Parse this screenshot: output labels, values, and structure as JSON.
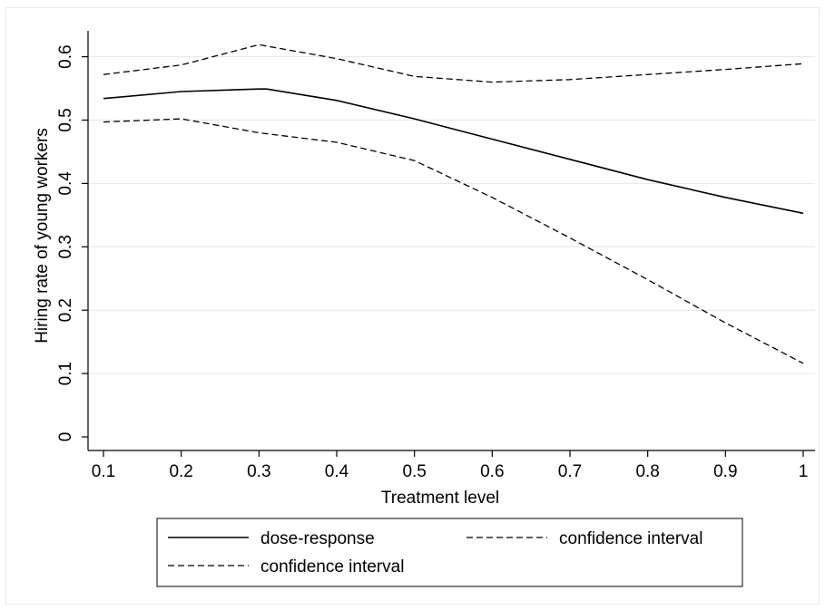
{
  "chart_data": {
    "type": "line",
    "xlabel": "Treatment level",
    "ylabel": "Hiring rate of young workers",
    "xlim": [
      0.1,
      1.0
    ],
    "ylim": [
      0,
      0.6
    ],
    "x_ticks": [
      "0.1",
      "0.2",
      "0.3",
      "0.4",
      "0.5",
      "0.6",
      "0.7",
      "0.8",
      "0.9",
      "1"
    ],
    "y_ticks": [
      "0",
      "0.1",
      "0.2",
      "0.3",
      "0.4",
      "0.5",
      "0.6"
    ],
    "x_tick_values": [
      0.1,
      0.2,
      0.3,
      0.4,
      0.5,
      0.6,
      0.7,
      0.8,
      0.9,
      1.0
    ],
    "y_tick_values": [
      0,
      0.1,
      0.2,
      0.3,
      0.4,
      0.5,
      0.6
    ],
    "grid": "horizontal",
    "legend_position": "bottom",
    "series": [
      {
        "name": "dose-response",
        "style": "solid",
        "x": [
          0.1,
          0.2,
          0.3,
          0.31,
          0.4,
          0.5,
          0.6,
          0.7,
          0.8,
          0.9,
          1.0
        ],
        "y": [
          0.534,
          0.545,
          0.549,
          0.549,
          0.531,
          0.502,
          0.47,
          0.438,
          0.406,
          0.378,
          0.353
        ]
      },
      {
        "name": "confidence interval",
        "style": "dashed",
        "x": [
          0.1,
          0.2,
          0.25,
          0.3,
          0.4,
          0.5,
          0.6,
          0.7,
          0.8,
          0.9,
          1.0
        ],
        "y": [
          0.572,
          0.587,
          0.603,
          0.619,
          0.597,
          0.569,
          0.56,
          0.564,
          0.572,
          0.58,
          0.589
        ]
      },
      {
        "name": "confidence interval",
        "style": "dashed",
        "x": [
          0.1,
          0.2,
          0.3,
          0.4,
          0.5,
          0.6,
          0.7,
          0.8,
          0.9,
          1.0
        ],
        "y": [
          0.497,
          0.502,
          0.48,
          0.465,
          0.436,
          0.378,
          0.314,
          0.248,
          0.18,
          0.116
        ]
      }
    ],
    "colors": {
      "line": "#000000",
      "grid": "#e6e6e6",
      "axis": "#000000"
    }
  }
}
